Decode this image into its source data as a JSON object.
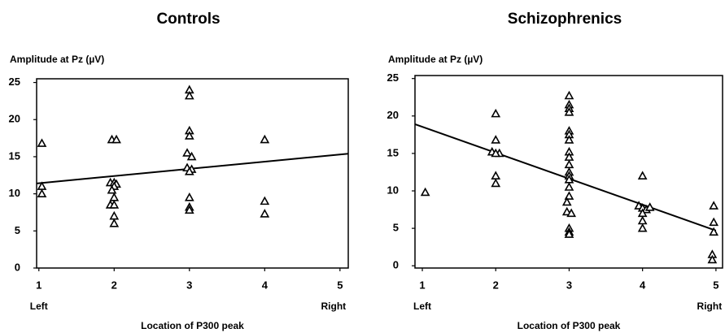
{
  "chart_data": [
    {
      "type": "scatter",
      "title": "Controls",
      "y_label": "Amplitude at Pz (µV)",
      "x_label": "Location of P300 peak",
      "x_end_labels": [
        "Left",
        "Right"
      ],
      "xlim": [
        0.97,
        5.11
      ],
      "ylim": [
        0,
        25.5
      ],
      "xticks": [
        1,
        2,
        3,
        4,
        5
      ],
      "yticks": [
        0,
        5,
        10,
        15,
        20,
        25
      ],
      "grid": false,
      "series": [
        {
          "color": "#000000",
          "x": [
            1.04,
            1.04,
            1.04,
            1.97,
            2.03,
            1.95,
            2.0,
            2.03,
            2.0,
            1.97,
            2.0,
            1.95,
            2.0,
            2.0,
            2.0,
            3.0,
            3.0,
            3.0,
            3.0,
            2.97,
            3.03,
            2.97,
            3.03,
            3.0,
            3.0,
            3.0,
            3.0,
            4.0,
            4.0,
            4.0
          ],
          "values": [
            16.8,
            11,
            10,
            17.3,
            17.3,
            11.5,
            11.5,
            11.3,
            11,
            10.5,
            9.5,
            8.5,
            8.5,
            7,
            6,
            24,
            23.2,
            18.5,
            17.8,
            15.5,
            15,
            13.5,
            13.3,
            13,
            9.5,
            8.2,
            7.8,
            17.3,
            9,
            7.3
          ]
        }
      ],
      "trend_line": {
        "x": [
          0.97,
          5.11
        ],
        "y": [
          11.4,
          15.4
        ]
      }
    },
    {
      "type": "scatter",
      "title": "Schizophrenics",
      "y_label": "Amplitude at Pz (µV)",
      "x_label": "Location of P300 peak",
      "x_end_labels": [
        "Left",
        "Right"
      ],
      "xlim": [
        0.9,
        5.09
      ],
      "ylim": [
        -0.3,
        25.4
      ],
      "xticks": [
        1,
        2,
        3,
        4,
        5
      ],
      "yticks": [
        0,
        5,
        10,
        15,
        20,
        25
      ],
      "grid": false,
      "series": [
        {
          "color": "#000000",
          "x": [
            1.04,
            2.0,
            2.0,
            1.95,
            2.05,
            2.0,
            2.0,
            2.0,
            3.0,
            3.0,
            3.0,
            3.0,
            3.0,
            3.0,
            3.0,
            3.0,
            3.0,
            3.0,
            3.0,
            3.0,
            3.0,
            3.0,
            3.0,
            2.97,
            2.97,
            3.03,
            3.0,
            3.0,
            3.0,
            4.0,
            3.95,
            4.0,
            4.05,
            4.0,
            4.0,
            4.0,
            4.1,
            4.97,
            4.97,
            4.97,
            4.95,
            4.95
          ],
          "values": [
            9.8,
            20.3,
            16.8,
            15.2,
            15,
            15,
            12,
            11,
            22.7,
            21.5,
            21,
            20.5,
            18,
            17.5,
            16.8,
            15.2,
            14.5,
            13.5,
            12.5,
            12,
            11.5,
            10.5,
            9.3,
            8.5,
            7.2,
            7,
            5,
            4.5,
            4.2,
            12,
            8,
            7.7,
            7.5,
            7,
            6,
            5,
            7.8,
            8,
            5.8,
            4.5,
            1.5,
            0.8
          ]
        }
      ],
      "trend_line": {
        "x": [
          0.9,
          5.0
        ],
        "y": [
          18.9,
          4.7
        ]
      }
    }
  ]
}
